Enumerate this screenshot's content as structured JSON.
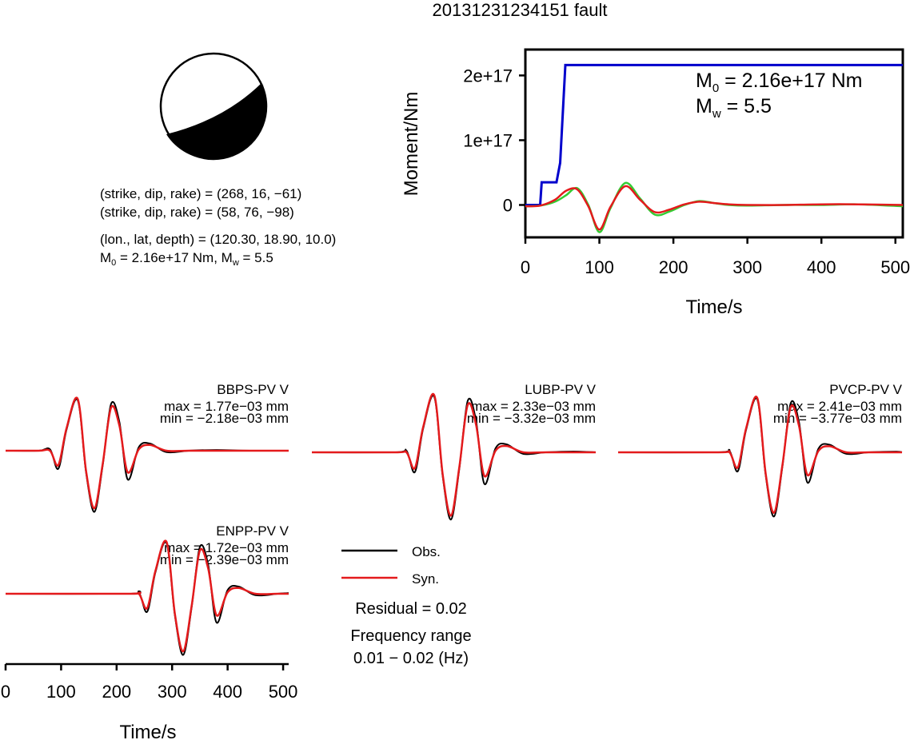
{
  "title": "20131231234151 fault",
  "mechanism": {
    "line1": "(strike, dip, rake) = (268, 16, −61)",
    "line2": "(strike, dip, rake) = (58, 76, −98)",
    "line3": "(lon., lat, depth) = (120.30, 18.90, 10.0)",
    "line4_m0_value": " = 2.16e+17 Nm, M",
    "line4_mw_value": " = 5.5",
    "m_symbol": "M",
    "sub0": "0",
    "subw": "w",
    "strike": 268,
    "dip": 16,
    "rake": -61,
    "strike2": 58,
    "dip2": 76,
    "rake2": -98,
    "lon": 120.3,
    "lat": 18.9,
    "depth": 10.0
  },
  "moment_panel": {
    "ylabel": "Moment/Nm",
    "xlabel": "Time/s",
    "m0_text": " = 2.16e+17 Nm",
    "mw_text": " = 5.5",
    "m_symbol": "M",
    "sub0": "0",
    "subw": "w",
    "yticks": [
      "0",
      "1e+17",
      "2e+17"
    ],
    "xticks": [
      "0",
      "100",
      "200",
      "300",
      "400",
      "500"
    ]
  },
  "stations": [
    {
      "name": "BBPS-PV V",
      "max": "max = 1.77e−03 mm",
      "min": "min = −2.18e−03 mm"
    },
    {
      "name": "LUBP-PV V",
      "max": "max = 2.33e−03 mm",
      "min": "min = −3.32e−03 mm"
    },
    {
      "name": "PVCP-PV V",
      "max": "max = 2.41e−03 mm",
      "min": "min = −3.77e−03 mm"
    },
    {
      "name": "ENPP-PV V",
      "max": "max = 1.72e−03 mm",
      "min": "min = −2.39e−03 mm"
    }
  ],
  "legend": {
    "obs": "Obs.",
    "syn": "Syn.",
    "residual": "Residual = 0.02",
    "freq_label": "Frequency range",
    "freq_value": "0.01 − 0.02 (Hz)"
  },
  "waveform_axis": {
    "xlabel": "Time/s",
    "xticks": [
      "0",
      "100",
      "200",
      "300",
      "400",
      "500"
    ]
  },
  "colors": {
    "observed": "#000000",
    "synthetic": "#e41a1c",
    "cumulative_moment": "#0000cc",
    "green_trace": "#33cc33",
    "beachball_fill": "#000000"
  },
  "chart_data": [
    {
      "type": "line",
      "xlabel": "Time/s",
      "ylabel": "Moment/Nm",
      "xlim": [
        0,
        510
      ],
      "ylim": [
        -5e+16,
        2.4e+17
      ],
      "series": [
        {
          "x": [
            0,
            20,
            22,
            42,
            47,
            54,
            510
          ],
          "values": [
            0,
            0,
            3.5e+16,
            3.5e+16,
            6.5e+16,
            2.16e+17,
            2.16e+17
          ]
        },
        {
          "x": [
            0,
            20,
            40,
            55,
            70,
            85,
            100,
            115,
            135,
            155,
            175,
            195,
            215,
            235,
            255,
            275,
            300,
            350,
            400,
            450,
            510
          ],
          "values": [
            -2000000000000000.0,
            -1000000000000000.0,
            5000000000000000.0,
            1.5e+16,
            2.6e+16,
            0.0,
            -4.2e+16,
            -5000000000000000.0,
            3.4e+16,
            1e+16,
            -1.5e+16,
            -1e+16,
            0.0,
            6000000000000000.0,
            3000000000000000.0,
            0.0,
            -1000000000000000.0,
            0.0,
            0.0,
            1000000000000000.0,
            -2000000000000000.0
          ]
        },
        {
          "x": [
            0,
            20,
            40,
            55,
            70,
            85,
            100,
            115,
            135,
            155,
            175,
            195,
            215,
            235,
            255,
            275,
            300,
            350,
            400,
            450,
            510
          ],
          "values": [
            -2000000000000000.0,
            -1000000000000000.0,
            8000000000000000.0,
            2.2e+16,
            2.4e+16,
            -2000000000000000.0,
            -3.8e+16,
            -3000000000000000.0,
            2.9e+16,
            8000000000000000.0,
            -1.1e+16,
            -7000000000000000.0,
            1000000000000000.0,
            5000000000000000.0,
            3000000000000000.0,
            1000000000000000.0,
            0.0,
            0.0,
            1000000000000000.0,
            1000000000000000.0,
            0.0
          ]
        }
      ]
    },
    {
      "type": "line",
      "xlabel": "Time/s",
      "xlim": [
        0,
        510
      ],
      "ylim": [
        -1,
        1
      ],
      "series": [
        {
          "x": [
            0,
            60,
            80,
            95,
            110,
            130,
            145,
            160,
            175,
            190,
            205,
            220,
            240,
            260,
            290,
            330,
            380,
            440,
            510
          ],
          "values": [
            0,
            0,
            0.02,
            -0.25,
            0.3,
            0.7,
            -0.3,
            -0.85,
            -0.2,
            0.65,
            0.4,
            -0.4,
            0.05,
            0.1,
            -0.02,
            0.0,
            0.01,
            0.0,
            0.0
          ]
        },
        {
          "x": [
            0,
            60,
            80,
            95,
            110,
            130,
            145,
            160,
            175,
            190,
            205,
            220,
            240,
            260,
            290,
            330,
            380,
            440,
            510
          ],
          "values": [
            0,
            0,
            0.0,
            -0.2,
            0.32,
            0.72,
            -0.28,
            -0.8,
            -0.18,
            0.6,
            0.35,
            -0.3,
            0.02,
            0.08,
            0.0,
            0.0,
            0.0,
            0.0,
            0.0
          ]
        }
      ]
    }
  ]
}
